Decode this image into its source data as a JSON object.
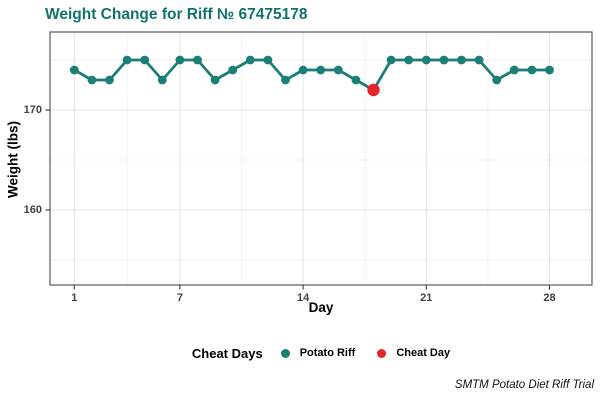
{
  "title": "Weight Change for Riff № 67475178",
  "caption": "SMTM Potato Diet Riff Trial",
  "axes": {
    "x_title": "Day",
    "y_title": "Weight (lbs)"
  },
  "legend": {
    "title": "Cheat Days",
    "items": [
      {
        "label": "Potato Riff",
        "color": "#1b7e77"
      },
      {
        "label": "Cheat Day",
        "color": "#e42529"
      }
    ]
  },
  "colors": {
    "title": "#11736e",
    "series": "#1b7e77",
    "cheat": "#e42529",
    "grid_major": "#e5e5e5",
    "grid_minor": "#f2f2f2",
    "panel_border": "#595959",
    "tick_mark": "#333333",
    "tick_label": "#404040"
  },
  "chart_data": {
    "type": "line",
    "title": "Weight Change for Riff № 67475178",
    "xlabel": "Day",
    "ylabel": "Weight (lbs)",
    "x": [
      1,
      2,
      3,
      4,
      5,
      6,
      7,
      8,
      9,
      10,
      11,
      12,
      13,
      14,
      15,
      16,
      17,
      18,
      19,
      20,
      21,
      22,
      23,
      24,
      25,
      26,
      27,
      28
    ],
    "series": [
      {
        "name": "Potato Riff",
        "values": [
          174,
          173,
          173,
          175,
          175,
          173,
          175,
          175,
          173,
          174,
          175,
          175,
          173,
          174,
          174,
          174,
          173,
          172,
          175,
          175,
          175,
          175,
          175,
          175,
          173,
          174,
          174,
          174
        ]
      }
    ],
    "cheat_days": [
      18
    ],
    "cheat_day_value": 172,
    "x_ticks": [
      1,
      7,
      14,
      21,
      28
    ],
    "x_minor_ticks": [
      4,
      10.5,
      17.5,
      24.5
    ],
    "y_ticks": [
      170,
      160
    ],
    "y_minor_ticks": [
      175,
      165,
      155
    ],
    "xlim": [
      0,
      30.4
    ],
    "ylim": [
      152.5,
      177.5
    ],
    "grid": true,
    "legend_position": "bottom",
    "legend_title": "Cheat Days",
    "point_series_color": "#1b7e77",
    "cheat_point_color": "#e42529"
  }
}
